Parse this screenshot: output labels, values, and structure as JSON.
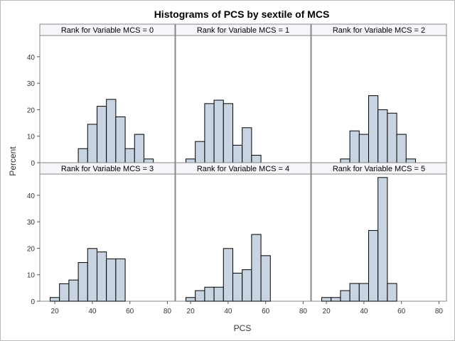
{
  "chart_data": {
    "type": "bar",
    "title": "Histograms of PCS by sextile of MCS",
    "xlabel": "PCS",
    "ylabel": "Percent",
    "xlim": [
      12,
      84
    ],
    "ylim": [
      0,
      48
    ],
    "x_ticks": [
      "20",
      "40",
      "60",
      "80"
    ],
    "y_ticks": [
      "0",
      "10",
      "20",
      "30",
      "40"
    ],
    "x_tick_values": [
      20,
      40,
      60,
      80
    ],
    "y_tick_values": [
      0,
      10,
      20,
      30,
      40
    ],
    "bin_edges": [
      17.5,
      22.5,
      27.5,
      32.5,
      37.5,
      42.5,
      47.5,
      52.5,
      57.5,
      62.5,
      67.5,
      72.5
    ],
    "colors": {
      "bar_fill": "#c9d4e3",
      "bar_stroke": "#000000",
      "panel_bg": "#ffffff",
      "header_bg": "#f5f5fa",
      "frame": "#888888"
    },
    "panels": [
      {
        "label": "Rank for Variable MCS = 0",
        "values": [
          0,
          0,
          0,
          5.3,
          14.5,
          21.3,
          23.9,
          17.3,
          5.3,
          10.7,
          1.4
        ]
      },
      {
        "label": "Rank for Variable MCS = 1",
        "values": [
          1.4,
          8.0,
          22.3,
          23.6,
          22.3,
          6.6,
          13.2,
          2.8,
          0,
          0,
          0
        ]
      },
      {
        "label": "Rank for Variable MCS = 2",
        "values": [
          0,
          0,
          1.4,
          12.0,
          10.7,
          25.3,
          20.0,
          18.7,
          10.7,
          1.4,
          0
        ]
      },
      {
        "label": "Rank for Variable MCS = 3",
        "values": [
          1.4,
          6.6,
          8.0,
          14.6,
          19.9,
          18.6,
          16.0,
          16.0,
          0,
          0,
          0
        ]
      },
      {
        "label": "Rank for Variable MCS = 4",
        "values": [
          1.4,
          4.0,
          5.3,
          5.3,
          19.9,
          10.6,
          11.9,
          25.2,
          17.2,
          0,
          0
        ]
      },
      {
        "label": "Rank for Variable MCS = 5",
        "values": [
          1.4,
          1.4,
          4.0,
          6.7,
          6.7,
          26.7,
          46.7,
          6.7,
          0,
          0,
          0
        ]
      }
    ]
  }
}
